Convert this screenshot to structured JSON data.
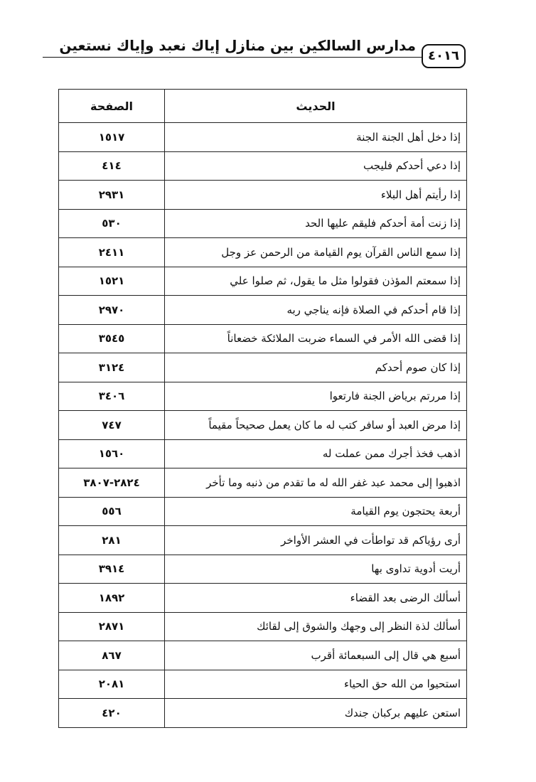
{
  "header": {
    "title": "مدارس السالكين بين منازل إياك نعبد وإياك نستعين",
    "page_number": "٤٠١٦"
  },
  "table": {
    "columns": [
      "الحديث",
      "الصفحة"
    ],
    "rows": [
      [
        "إذا دخل أهل الجنة الجنة",
        "١٥١٧"
      ],
      [
        "إذا دعي أحدكم فليجب",
        "٤١٤"
      ],
      [
        "إذا رأيتم أهل البلاء",
        "٢٩٣١"
      ],
      [
        "إذا زنت أمة أحدكم فليقم عليها الحد",
        "٥٣٠"
      ],
      [
        "إذا سمع الناس القرآن يوم القيامة من الرحمن عز وجل",
        "٢٤١١"
      ],
      [
        "إذا سمعتم المؤذن فقولوا مثل ما يقول، ثم صلوا علي",
        "١٥٢١"
      ],
      [
        "إذا قام أحدكم في الصلاة فإنه يناجي ربه",
        "٢٩٧٠"
      ],
      [
        "إذا قضى الله الأمر في السماء ضربت الملائكة خضعاناً",
        "٣٥٤٥"
      ],
      [
        "إذا كان صوم أحدكم",
        "٣١٢٤"
      ],
      [
        "إذا مررتم برياض الجنة فارتعوا",
        "٣٤٠٦"
      ],
      [
        "إذا مرض العبد أو سافر كتب له ما كان يعمل صحيحاً مقيماً",
        "٧٤٧"
      ],
      [
        "اذهب فخذ أجرك ممن عملت له",
        "١٥٦٠"
      ],
      [
        "اذهبوا إلى محمد عبد غفر الله له ما تقدم من ذنبه وما تأخر",
        "٢٨٢٤-٣٨٠٧"
      ],
      [
        "أربعة يحتجون يوم القيامة",
        "٥٥٦"
      ],
      [
        "أرى رؤياكم قد تواطأت في العشر الأواخر",
        "٢٨١"
      ],
      [
        "أريت أدوية تداوى بها",
        "٣٩١٤"
      ],
      [
        "أسألك الرضى بعد القضاء",
        "١٨٩٢"
      ],
      [
        "أسألك لذة النظر إلى وجهك والشوق إلى لقائك",
        "٢٨٧١"
      ],
      [
        "أسبع هي قال إلى السبعمائة أقرب",
        "٨٦٧"
      ],
      [
        "استحيوا من الله حق الحياء",
        "٢٠٨١"
      ],
      [
        "استعن عليهم بركبان جندك",
        "٤٢٠"
      ]
    ]
  }
}
